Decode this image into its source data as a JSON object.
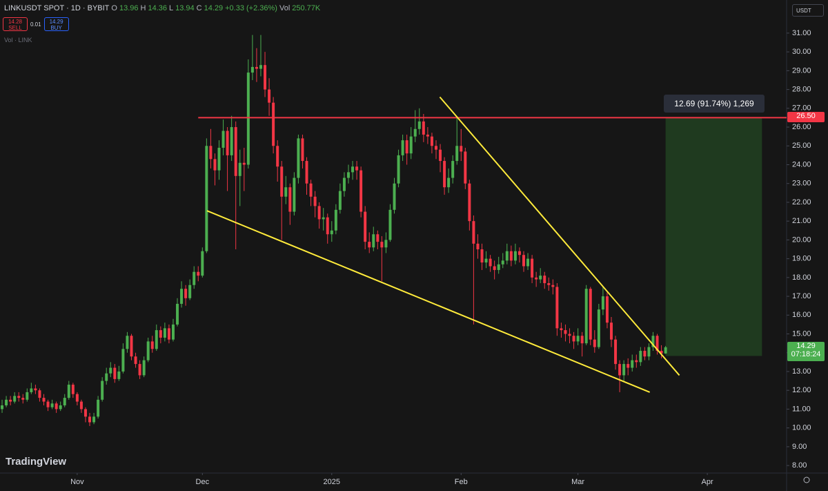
{
  "header": {
    "symbol": "LINKUSDT SPOT · 1D · BYBIT",
    "ohlc": [
      "O",
      "13.96",
      "H",
      "14.36",
      "L",
      "13.94",
      "C",
      "14.29",
      "+0.33 (+2.36%)",
      "Vol",
      "250.77K"
    ],
    "sell": {
      "price": "14.28",
      "label": "SELL"
    },
    "spread": "0.01",
    "buy": {
      "price": "14.29",
      "label": "BUY"
    },
    "volume_label": "Vol · LINK",
    "currency": "USDT",
    "brand": "TradingView"
  },
  "chart_data": {
    "type": "candlestick",
    "up_color": "#4caf50",
    "down_color": "#f23645",
    "xlim": [
      -0.5,
      188
    ],
    "ylim": [
      7.6,
      32.76
    ],
    "xticks": [
      {
        "value": 18,
        "label": "Nov"
      },
      {
        "value": 48,
        "label": "Dec"
      },
      {
        "value": 79,
        "label": "2025"
      },
      {
        "value": 110,
        "label": "Feb"
      },
      {
        "value": 138,
        "label": "Mar"
      },
      {
        "value": 169,
        "label": "Apr"
      }
    ],
    "yticks": [
      {
        "value": 8,
        "label": "8.00"
      },
      {
        "value": 9,
        "label": "9.00"
      },
      {
        "value": 10,
        "label": "10.00"
      },
      {
        "value": 11,
        "label": "11.00"
      },
      {
        "value": 12,
        "label": "12.00"
      },
      {
        "value": 13,
        "label": "13.00"
      },
      {
        "value": 14,
        "label": "14.00"
      },
      {
        "value": 15,
        "label": "15.00"
      },
      {
        "value": 16,
        "label": "16.00"
      },
      {
        "value": 17,
        "label": "17.00"
      },
      {
        "value": 18,
        "label": "18.00"
      },
      {
        "value": 19,
        "label": "19.00"
      },
      {
        "value": 20,
        "label": "20.00"
      },
      {
        "value": 21,
        "label": "21.00"
      },
      {
        "value": 22,
        "label": "22.00"
      },
      {
        "value": 23,
        "label": "23.00"
      },
      {
        "value": 24,
        "label": "24.00"
      },
      {
        "value": 25,
        "label": "25.00"
      },
      {
        "value": 26,
        "label": "26.00"
      },
      {
        "value": 27,
        "label": "27.00"
      },
      {
        "value": 28,
        "label": "28.00"
      },
      {
        "value": 29,
        "label": "29.00"
      },
      {
        "value": 30,
        "label": "30.00"
      },
      {
        "value": 31,
        "label": "31.00"
      }
    ],
    "open": [
      11.0,
      11.2,
      11.5,
      11.4,
      11.7,
      11.6,
      11.5,
      11.9,
      12.1,
      12.0,
      11.6,
      11.4,
      11.1,
      11.3,
      11.0,
      11.2,
      11.6,
      12.3,
      11.8,
      11.4,
      11.0,
      10.6,
      10.3,
      10.6,
      11.5,
      12.5,
      12.9,
      13.2,
      12.6,
      13.0,
      14.2,
      14.9,
      13.8,
      13.4,
      12.8,
      13.6,
      14.6,
      14.2,
      15.2,
      14.8,
      15.3,
      14.7,
      15.5,
      16.6,
      17.4,
      16.9,
      17.6,
      18.3,
      18.1,
      19.4,
      25.0,
      24.3,
      23.7,
      24.9,
      25.8,
      24.5,
      26.0,
      23.4,
      24.1,
      24.0,
      28.9,
      29.2,
      29.1,
      29.3,
      28.0,
      27.3,
      25.0,
      23.9,
      22.3,
      22.8,
      21.5,
      23.3,
      25.4,
      24.2,
      23.0,
      22.3,
      21.8,
      21.1,
      21.2,
      20.3,
      20.5,
      21.6,
      22.6,
      23.3,
      23.6,
      23.9,
      23.7,
      21.5,
      19.9,
      19.6,
      20.3,
      19.9,
      19.6,
      20.0,
      21.6,
      23.0,
      24.5,
      25.3,
      24.6,
      25.5,
      25.9,
      26.3,
      25.6,
      25.5,
      25.0,
      24.8,
      24.2,
      22.8,
      23.3,
      24.2,
      25.0,
      24.7,
      23.0,
      21.0,
      19.8,
      19.5,
      18.8,
      19.0,
      18.6,
      18.4,
      18.7,
      18.9,
      19.4,
      18.9,
      19.4,
      19.2,
      18.6,
      19.0,
      18.0,
      17.9,
      18.1,
      17.7,
      17.6,
      17.5,
      15.3,
      15.2,
      15.0,
      14.9,
      14.6,
      14.9,
      14.5,
      17.4,
      14.7,
      14.3,
      16.3,
      17.0,
      15.6,
      14.7,
      13.4,
      12.8,
      13.4,
      13.2,
      13.6,
      13.5,
      14.1,
      13.8,
      14.3,
      14.9,
      14.1,
      13.96
    ],
    "high": [
      11.5,
      11.7,
      11.7,
      11.9,
      11.9,
      11.8,
      12.1,
      12.4,
      12.3,
      12.1,
      11.8,
      11.5,
      11.5,
      11.4,
      11.4,
      11.8,
      12.5,
      12.4,
      11.9,
      11.5,
      11.1,
      10.8,
      10.8,
      11.7,
      12.7,
      13.2,
      13.5,
      13.4,
      13.3,
      14.5,
      15.1,
      15.0,
      14.0,
      13.6,
      13.8,
      14.8,
      14.9,
      15.5,
      15.4,
      15.6,
      15.5,
      15.8,
      16.9,
      17.8,
      17.6,
      17.9,
      18.6,
      18.6,
      19.6,
      25.4,
      25.9,
      24.6,
      25.3,
      26.4,
      26.0,
      26.6,
      26.3,
      24.8,
      24.9,
      29.6,
      30.9,
      30.2,
      30.9,
      30.0,
      28.6,
      27.6,
      25.3,
      24.2,
      23.4,
      23.0,
      23.6,
      25.6,
      25.6,
      24.4,
      23.2,
      22.6,
      22.0,
      21.7,
      21.4,
      21.0,
      21.9,
      23.0,
      23.6,
      24.0,
      24.2,
      24.2,
      23.9,
      21.8,
      20.4,
      20.7,
      20.5,
      20.2,
      20.4,
      21.9,
      23.3,
      24.8,
      25.6,
      25.6,
      26.0,
      26.9,
      27.0,
      26.7,
      26.0,
      25.7,
      25.3,
      25.1,
      24.4,
      23.8,
      24.5,
      26.6,
      25.9,
      24.9,
      23.2,
      21.3,
      20.3,
      19.8,
      19.4,
      19.2,
      18.9,
      19.1,
      19.3,
      19.8,
      19.7,
      19.8,
      19.6,
      19.4,
      19.3,
      19.2,
      18.3,
      18.5,
      18.3,
      18.0,
      17.9,
      17.7,
      15.6,
      15.5,
      15.3,
      15.1,
      15.3,
      15.1,
      17.6,
      17.5,
      15.2,
      16.6,
      17.5,
      17.2,
      15.9,
      14.9,
      13.6,
      13.6,
      13.7,
      13.9,
      13.9,
      14.3,
      14.3,
      14.5,
      15.1,
      15.0,
      14.4,
      14.36
    ],
    "low": [
      10.8,
      11.1,
      11.2,
      11.3,
      11.4,
      11.3,
      11.4,
      11.8,
      11.8,
      11.4,
      11.2,
      10.9,
      11.0,
      10.8,
      10.9,
      11.1,
      11.5,
      11.6,
      11.2,
      10.8,
      10.3,
      10.1,
      10.2,
      10.5,
      11.4,
      12.3,
      12.7,
      12.4,
      12.5,
      12.9,
      14.0,
      13.6,
      13.2,
      12.6,
      12.7,
      13.5,
      14.0,
      14.1,
      14.5,
      14.6,
      14.5,
      14.6,
      15.4,
      16.4,
      16.5,
      16.8,
      17.4,
      17.8,
      18.0,
      19.3,
      23.8,
      22.9,
      23.2,
      24.5,
      22.6,
      24.2,
      19.5,
      21.8,
      22.6,
      23.8,
      28.5,
      28.4,
      28.7,
      27.6,
      26.6,
      24.6,
      23.1,
      20.0,
      21.9,
      20.8,
      21.3,
      23.0,
      23.8,
      22.4,
      21.8,
      21.2,
      20.6,
      20.5,
      19.8,
      19.9,
      20.3,
      21.4,
      22.3,
      23.0,
      23.2,
      23.2,
      21.2,
      19.5,
      19.3,
      19.4,
      19.5,
      17.8,
      19.3,
      19.9,
      21.4,
      22.8,
      24.2,
      24.0,
      24.3,
      25.2,
      25.6,
      25.2,
      25.1,
      24.6,
      24.3,
      23.6,
      22.4,
      22.5,
      23.0,
      24.0,
      24.2,
      22.7,
      20.5,
      15.5,
      19.0,
      18.4,
      18.5,
      18.3,
      17.9,
      18.2,
      18.5,
      18.7,
      18.6,
      18.7,
      18.8,
      18.3,
      18.4,
      17.7,
      17.5,
      17.7,
      17.4,
      17.3,
      17.1,
      14.9,
      14.8,
      14.6,
      14.5,
      14.2,
      14.4,
      13.8,
      14.4,
      14.4,
      14.0,
      14.2,
      16.0,
      15.3,
      14.3,
      13.1,
      11.9,
      12.5,
      12.8,
      13.0,
      13.2,
      13.3,
      13.6,
      13.6,
      14.1,
      13.9,
      13.7,
      13.94
    ],
    "close": [
      11.2,
      11.5,
      11.4,
      11.7,
      11.6,
      11.5,
      11.9,
      12.1,
      12.0,
      11.6,
      11.4,
      11.1,
      11.3,
      11.0,
      11.2,
      11.6,
      12.3,
      11.8,
      11.4,
      11.0,
      10.6,
      10.3,
      10.6,
      11.5,
      12.5,
      12.9,
      13.2,
      12.6,
      13.0,
      14.2,
      14.9,
      13.8,
      13.4,
      12.8,
      13.6,
      14.6,
      14.2,
      15.2,
      14.8,
      15.3,
      14.7,
      15.5,
      16.6,
      17.4,
      16.9,
      17.6,
      18.3,
      18.1,
      19.4,
      25.0,
      24.3,
      23.7,
      24.9,
      25.8,
      24.5,
      26.0,
      23.4,
      24.1,
      24.0,
      28.9,
      29.2,
      29.1,
      29.3,
      28.0,
      27.3,
      25.0,
      23.9,
      22.3,
      22.8,
      21.5,
      23.3,
      25.4,
      24.2,
      23.0,
      22.3,
      21.8,
      21.1,
      21.2,
      20.3,
      20.5,
      21.6,
      22.6,
      23.3,
      23.6,
      23.9,
      23.7,
      21.5,
      19.9,
      19.6,
      20.3,
      19.9,
      19.6,
      20.0,
      21.6,
      23.0,
      24.5,
      25.3,
      24.6,
      25.5,
      25.9,
      26.3,
      25.6,
      25.5,
      25.0,
      24.8,
      24.2,
      22.8,
      23.3,
      24.2,
      25.0,
      24.7,
      23.0,
      21.0,
      19.8,
      19.5,
      18.8,
      19.0,
      18.6,
      18.4,
      18.7,
      18.9,
      19.4,
      18.9,
      19.4,
      19.2,
      18.6,
      19.0,
      18.0,
      17.9,
      18.1,
      17.7,
      17.6,
      17.5,
      15.3,
      15.2,
      15.0,
      14.9,
      14.6,
      14.9,
      14.5,
      17.4,
      14.7,
      14.3,
      16.3,
      17.0,
      15.6,
      14.7,
      13.4,
      12.8,
      13.4,
      13.2,
      13.6,
      13.5,
      14.1,
      13.8,
      14.3,
      14.9,
      14.1,
      13.96,
      14.29
    ],
    "lines": [
      {
        "color": "#f23645",
        "x": [
          47,
          188
        ],
        "y": [
          26.5,
          26.5
        ]
      },
      {
        "color": "#ffeb3b",
        "x": [
          49.1,
          155.2
        ],
        "y": [
          21.55,
          11.9
        ]
      },
      {
        "color": "#ffeb3b",
        "x": [
          104.9,
          162.3
        ],
        "y": [
          27.6,
          12.8
        ]
      }
    ],
    "position": {
      "color": "#1f3a1f",
      "x": [
        159,
        182.1
      ],
      "y": [
        13.83,
        26.5
      ],
      "label": "12.69 (91.74%) 1,269"
    },
    "price_labels": [
      {
        "value": 26.5,
        "label": "26.50",
        "color": "#f23645"
      },
      {
        "value": 14.29,
        "label": "14.29",
        "sublabel": "07:18:24",
        "color": "#4caf50"
      }
    ]
  }
}
